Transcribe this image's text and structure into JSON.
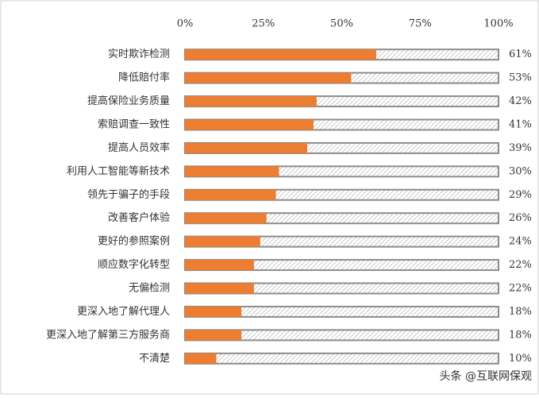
{
  "chart_data": {
    "type": "bar",
    "orientation": "horizontal",
    "categories": [
      "实时欺诈检测",
      "降低赔付率",
      "提高保险业务质量",
      "索赔调查一致性",
      "提高人员效率",
      "利用人工智能等新技术",
      "领先于骗子的手段",
      "改善客户体验",
      "更好的参照案例",
      "顺应数字化转型",
      "无偏检测",
      "更深入地了解代理人",
      "更深入地了解第三方服务商",
      "不清楚"
    ],
    "values": [
      61,
      53,
      42,
      41,
      39,
      30,
      29,
      26,
      24,
      22,
      22,
      18,
      18,
      10
    ],
    "value_labels": [
      "61%",
      "53%",
      "42%",
      "41%",
      "39%",
      "30%",
      "29%",
      "26%",
      "24%",
      "22%",
      "22%",
      "18%",
      "18%",
      "10%"
    ],
    "color": "#ed7d31",
    "xlim": [
      0,
      100
    ],
    "xticks": [
      {
        "value": 0,
        "label": "0%"
      },
      {
        "value": 25,
        "label": "25%"
      },
      {
        "value": 50,
        "label": "50%"
      },
      {
        "value": 75,
        "label": "75%"
      },
      {
        "value": 100,
        "label": "100%"
      }
    ],
    "annotation": "头条 @互联网保观"
  }
}
